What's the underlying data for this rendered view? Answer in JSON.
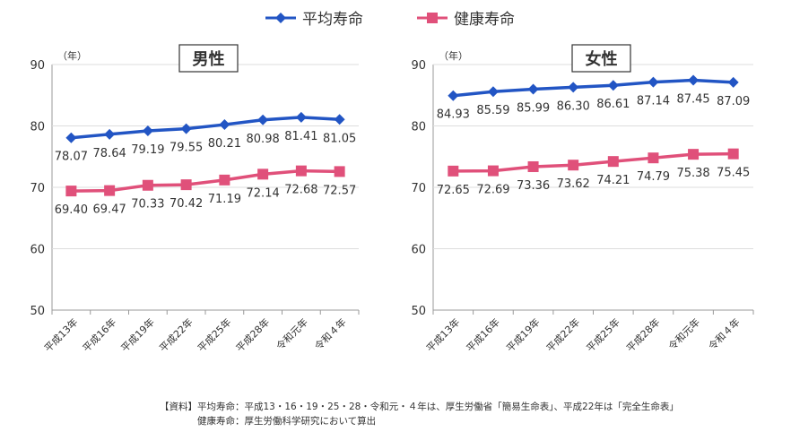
{
  "chart_data": {
    "type": "line",
    "legend": [
      "平均寿命",
      "健康寿命"
    ],
    "legend_placement": "top-center",
    "colors": {
      "平均寿命": "#2255c4",
      "健康寿命": "#e0507a"
    },
    "categories": [
      "平成13年",
      "平成16年",
      "平成19年",
      "平成22年",
      "平成25年",
      "平成28年",
      "令和元年",
      "令和４年"
    ],
    "ylabel": "（年）",
    "ylim": [
      50,
      90
    ],
    "yticks": [
      50,
      60,
      70,
      80,
      90
    ],
    "charts": [
      {
        "title": "男性",
        "series": [
          {
            "name": "平均寿命",
            "values": [
              78.07,
              78.64,
              79.19,
              79.55,
              80.21,
              80.98,
              81.41,
              81.05
            ]
          },
          {
            "name": "健康寿命",
            "values": [
              69.4,
              69.47,
              70.33,
              70.42,
              71.19,
              72.14,
              72.68,
              72.57
            ]
          }
        ]
      },
      {
        "title": "女性",
        "series": [
          {
            "name": "平均寿命",
            "values": [
              84.93,
              85.59,
              85.99,
              86.3,
              86.61,
              87.14,
              87.45,
              87.09
            ]
          },
          {
            "name": "健康寿命",
            "values": [
              72.65,
              72.69,
              73.36,
              73.62,
              74.21,
              74.79,
              75.38,
              75.45
            ]
          }
        ]
      }
    ]
  },
  "notes": [
    "【資料】平均寿命：平成13・16・19・25・28・令和元・４年は、厚生労働省「簡易生命表」、平成22年は「完全生命表」",
    "　　　　健康寿命：厚生労働科学研究において算出"
  ]
}
